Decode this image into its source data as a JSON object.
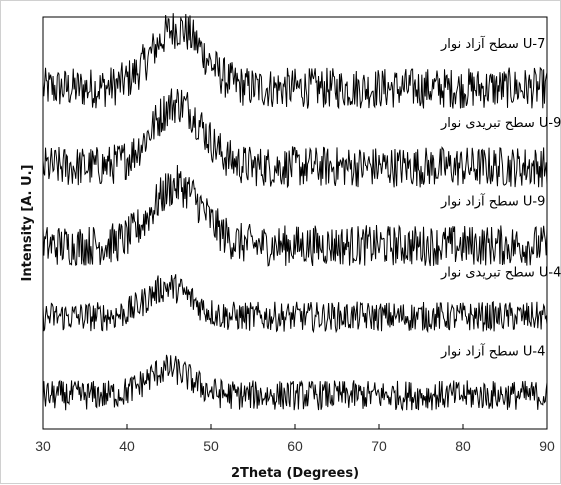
{
  "chart_data": {
    "type": "line",
    "title": "",
    "xlabel": "2Theta (Degrees)",
    "ylabel": "Intensity [A. U.]",
    "xlim": [
      30,
      90
    ],
    "x_ticks": [
      "30",
      "40",
      "50",
      "60",
      "70",
      "80",
      "90"
    ],
    "y_ticks_shown": false,
    "grid": false,
    "legend": "none (labels placed above each curve)",
    "x_step": 0.1,
    "series": [
      {
        "name": "U-7 سطح آزاد نوار",
        "label_text": "U-7 سطح آزاد نوار",
        "baseline": 9.1,
        "peak_center": 46.0,
        "peak_height": 1.6,
        "peak_width": 3.0,
        "noise": 0.55,
        "color": "#000000"
      },
      {
        "name": "U-9 سطح تبریدی نوار",
        "label_text": "U-9 سطح تبریدی نوار",
        "baseline": 7.0,
        "peak_center": 46.0,
        "peak_height": 1.7,
        "peak_width": 3.0,
        "noise": 0.55,
        "color": "#000000"
      },
      {
        "name": "U-9 سطح آزاد نوار",
        "label_text": "U-9 سطح آزاد نوار",
        "baseline": 4.9,
        "peak_center": 46.0,
        "peak_height": 1.6,
        "peak_width": 3.0,
        "noise": 0.55,
        "color": "#000000"
      },
      {
        "name": "U-4 سطح تبریدی نوار",
        "label_text": "U-4 سطح تبریدی نوار",
        "baseline": 3.0,
        "peak_center": 45.0,
        "peak_height": 0.8,
        "peak_width": 2.6,
        "noise": 0.4,
        "color": "#000000"
      },
      {
        "name": "U-4 سطح آزاد نوار",
        "label_text": "U-4 سطح آزاد نوار",
        "baseline": 0.9,
        "peak_center": 45.0,
        "peak_height": 0.7,
        "peak_width": 2.6,
        "noise": 0.4,
        "color": "#000000"
      }
    ]
  }
}
